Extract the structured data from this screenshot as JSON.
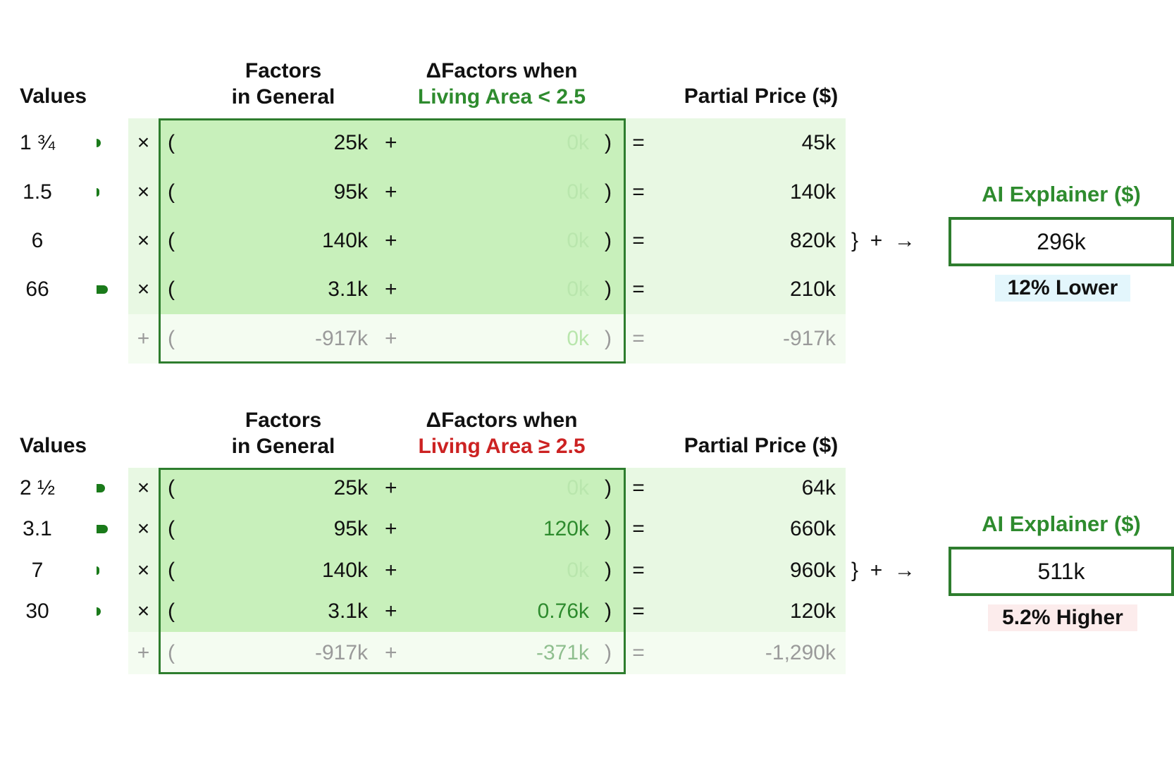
{
  "panels": [
    {
      "header": {
        "values": "Values",
        "factors_line1": "Factors",
        "factors_line2": "in General",
        "delta_line1": "ΔFactors when",
        "delta_line2": "Living Area < 2.5",
        "delta_color": "#2e8b2e",
        "partial": "Partial Price ($)"
      },
      "rows": [
        {
          "value": "1 ¾",
          "bar": 0.08,
          "op": "×",
          "factor": "25k",
          "delta": "0k",
          "delta_active": false,
          "partial": "45k"
        },
        {
          "value": "1.5",
          "bar": 0.05,
          "op": "×",
          "factor": "95k",
          "delta": "0k",
          "delta_active": false,
          "partial": "140k"
        },
        {
          "value": "6",
          "bar": 0.0,
          "op": "×",
          "factor": "140k",
          "delta": "0k",
          "delta_active": false,
          "partial": "820k"
        },
        {
          "value": "66",
          "bar": 0.2,
          "op": "×",
          "factor": "3.1k",
          "delta": "0k",
          "delta_active": false,
          "partial": "210k"
        },
        {
          "value": "",
          "bar": 0.0,
          "op": "+",
          "factor": "-917k",
          "delta": "0k",
          "delta_active": false,
          "partial": "-917k",
          "muted": true
        }
      ],
      "sum_symbols": "}  +  →",
      "ai_title": "AI Explainer ($)",
      "ai_value": "296k",
      "badge_text": "12% Lower",
      "badge_bg": "#e3f6fc"
    },
    {
      "header": {
        "values": "Values",
        "factors_line1": "Factors",
        "factors_line2": "in General",
        "delta_line1": "ΔFactors when",
        "delta_line2": "Living Area ≥ 2.5",
        "delta_color": "#cc2222",
        "partial": "Partial Price ($)"
      },
      "rows": [
        {
          "value": "2 ½",
          "bar": 0.15,
          "op": "×",
          "factor": "25k",
          "delta": "0k",
          "delta_active": false,
          "partial": "64k"
        },
        {
          "value": "3.1",
          "bar": 0.2,
          "op": "×",
          "factor": "95k",
          "delta": "120k",
          "delta_active": true,
          "partial": "660k"
        },
        {
          "value": "7",
          "bar": 0.05,
          "op": "×",
          "factor": "140k",
          "delta": "0k",
          "delta_active": false,
          "partial": "960k"
        },
        {
          "value": "30",
          "bar": 0.08,
          "op": "×",
          "factor": "3.1k",
          "delta": "0.76k",
          "delta_active": true,
          "partial": "120k"
        },
        {
          "value": "",
          "bar": 0.0,
          "op": "+",
          "factor": "-917k",
          "delta": "-371k",
          "delta_active": true,
          "partial": "-1,290k",
          "muted": true
        }
      ],
      "sum_symbols": "}  +  →",
      "ai_title": "AI Explainer ($)",
      "ai_value": "511k",
      "badge_text": "5.2% Higher",
      "badge_bg": "#fcecec"
    }
  ]
}
